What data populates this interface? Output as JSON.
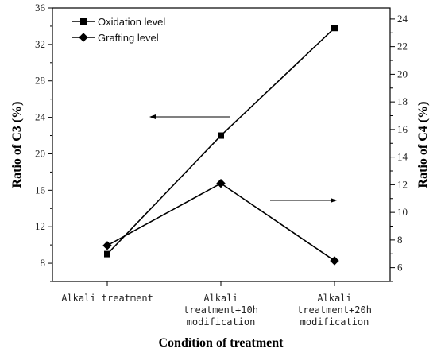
{
  "chart_data": {
    "type": "line",
    "categories": [
      [
        "Alkali treatment"
      ],
      [
        "Alkali",
        "treatment+10h",
        "modification"
      ],
      [
        "Alkali",
        "treatment+20h",
        "modification"
      ]
    ],
    "xlabel": "Condition of treatment",
    "ylabel_left": "Ratio of C3 (%)",
    "ylabel_right": "Ratio of C4 (%)",
    "ylim_left": [
      6,
      36
    ],
    "yticks_left": [
      8,
      12,
      16,
      20,
      24,
      28,
      32,
      36
    ],
    "ylim_right": [
      5,
      24.8
    ],
    "yticks_right": [
      6,
      8,
      10,
      12,
      14,
      16,
      18,
      20,
      22,
      24
    ],
    "series": [
      {
        "name": "Oxidation level",
        "axis": "left",
        "marker": "square",
        "values": [
          9.0,
          22.0,
          33.8
        ]
      },
      {
        "name": "Grafting level",
        "axis": "right",
        "marker": "diamond",
        "values": [
          7.6,
          12.1,
          6.5
        ]
      }
    ],
    "annotations": [
      {
        "type": "arrow",
        "direction": "left",
        "meaning": "Oxidation level -> left axis"
      },
      {
        "type": "arrow",
        "direction": "right",
        "meaning": "Grafting level -> right axis"
      }
    ],
    "legend": "top-left",
    "grid": false
  }
}
